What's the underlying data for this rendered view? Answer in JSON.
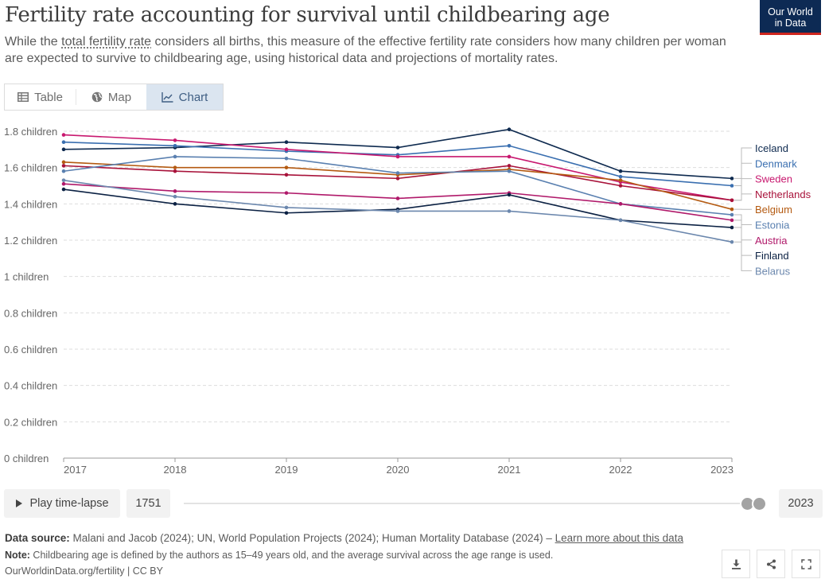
{
  "header": {
    "title": "Fertility rate accounting for survival until childbearing age",
    "subtitle_before": "While the ",
    "subtitle_link": "total fertility rate",
    "subtitle_after": " considers all births, this measure of the effective fertility rate considers how many children per woman are expected to survive to childbearing age, using historical data and projections of mortality rates.",
    "logo_line1": "Our World",
    "logo_line2": "in Data"
  },
  "tabs": [
    {
      "label": "Table",
      "icon": "table-icon"
    },
    {
      "label": "Map",
      "icon": "globe-icon"
    },
    {
      "label": "Chart",
      "icon": "line-chart-icon",
      "active": true
    }
  ],
  "chart_data": {
    "type": "line",
    "x": [
      2017,
      2018,
      2019,
      2020,
      2021,
      2022,
      2023
    ],
    "y_ticks": [
      0,
      0.2,
      0.4,
      0.6,
      0.8,
      1,
      1.2,
      1.4,
      1.6,
      1.8
    ],
    "y_tick_labels": [
      "0 children",
      "0.2 children",
      "0.4 children",
      "0.6 children",
      "0.8 children",
      "1 children",
      "1.2 children",
      "1.4 children",
      "1.6 children",
      "1.8 children"
    ],
    "ylim": [
      0,
      1.8
    ],
    "grid": true,
    "legend": "right",
    "series": [
      {
        "name": "Iceland",
        "color": "#0e2a4f",
        "values": [
          1.7,
          1.71,
          1.74,
          1.71,
          1.81,
          1.58,
          1.54
        ]
      },
      {
        "name": "Denmark",
        "color": "#3a6fb0",
        "values": [
          1.74,
          1.72,
          1.69,
          1.67,
          1.72,
          1.55,
          1.5
        ]
      },
      {
        "name": "Sweden",
        "color": "#c8186f",
        "values": [
          1.78,
          1.75,
          1.7,
          1.66,
          1.66,
          1.52,
          1.42
        ]
      },
      {
        "name": "Netherlands",
        "color": "#a8123a",
        "values": [
          1.61,
          1.58,
          1.56,
          1.54,
          1.61,
          1.5,
          1.42
        ]
      },
      {
        "name": "Belgium",
        "color": "#b45a11",
        "values": [
          1.63,
          1.6,
          1.6,
          1.56,
          1.59,
          1.53,
          1.37
        ]
      },
      {
        "name": "Estonia",
        "color": "#5a80b0",
        "values": [
          1.58,
          1.66,
          1.65,
          1.57,
          1.58,
          1.4,
          1.34
        ]
      },
      {
        "name": "Austria",
        "color": "#b0196a",
        "values": [
          1.51,
          1.47,
          1.46,
          1.43,
          1.46,
          1.4,
          1.31
        ]
      },
      {
        "name": "Finland",
        "color": "#0b2143",
        "values": [
          1.48,
          1.4,
          1.35,
          1.37,
          1.45,
          1.31,
          1.27
        ]
      },
      {
        "name": "Belarus",
        "color": "#6b87ad",
        "values": [
          1.53,
          1.44,
          1.38,
          1.36,
          1.36,
          1.31,
          1.19
        ]
      }
    ]
  },
  "timeline": {
    "play_label": "Play time-lapse",
    "start_year": "1751",
    "end_year": "2023"
  },
  "footer": {
    "source_label": "Data source:",
    "source_text": " Malani and Jacob (2024); UN, World Population Projects (2024); Human Mortality Database (2024) – ",
    "learn_more": "Learn more about this data",
    "note_label": "Note:",
    "note_text": " Childbearing age is defined by the authors as 15–49 years old, and the average survival across the age range is used.",
    "credit": "OurWorldinData.org/fertility | CC BY"
  }
}
